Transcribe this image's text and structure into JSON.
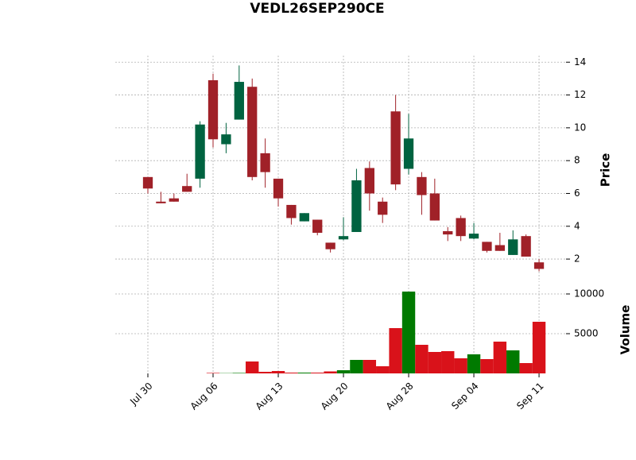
{
  "chart_data": {
    "type": "candlestick",
    "title": "VEDL26SEP290CE",
    "categories": [
      "Jul 30",
      null,
      null,
      null,
      null,
      "Aug 06",
      null,
      null,
      null,
      null,
      "Aug 13",
      null,
      null,
      null,
      null,
      "Aug 20",
      null,
      null,
      null,
      null,
      "Aug 28",
      null,
      null,
      null,
      null,
      "Sep 04",
      null,
      null,
      null,
      null,
      "Sep 11"
    ],
    "open": [
      7.0,
      5.5,
      5.7,
      6.45,
      6.9,
      12.9,
      9.0,
      10.5,
      12.5,
      8.45,
      6.9,
      5.3,
      4.3,
      4.4,
      3.0,
      3.2,
      3.65,
      7.55,
      5.5,
      11.0,
      7.5,
      7.0,
      6.0,
      3.7,
      4.5,
      3.25,
      3.05,
      2.85,
      2.25,
      3.4,
      1.8
    ],
    "high": [
      7.0,
      6.1,
      6.0,
      7.2,
      10.4,
      13.3,
      10.3,
      13.8,
      13.0,
      9.35,
      6.9,
      5.3,
      4.8,
      4.4,
      3.0,
      4.55,
      7.5,
      7.95,
      5.75,
      12.0,
      10.85,
      7.3,
      6.9,
      3.95,
      4.65,
      4.2,
      3.05,
      3.6,
      3.75,
      3.5,
      2.0
    ],
    "low": [
      6.0,
      5.4,
      5.5,
      6.1,
      6.35,
      8.8,
      8.45,
      10.5,
      6.8,
      6.35,
      5.2,
      4.1,
      4.3,
      3.45,
      2.4,
      3.15,
      3.65,
      4.95,
      4.2,
      6.2,
      7.15,
      4.7,
      4.35,
      3.1,
      3.1,
      3.2,
      2.4,
      2.5,
      2.25,
      2.15,
      1.25
    ],
    "close": [
      6.3,
      5.4,
      5.5,
      6.1,
      10.2,
      9.3,
      9.6,
      12.8,
      7.0,
      7.3,
      5.7,
      4.5,
      4.8,
      3.6,
      2.6,
      3.4,
      6.8,
      6.0,
      4.7,
      6.55,
      9.35,
      5.9,
      4.35,
      3.5,
      3.4,
      3.55,
      2.5,
      2.5,
      3.2,
      2.15,
      1.4
    ],
    "volume": [
      0,
      0,
      0,
      0,
      0,
      60,
      30,
      60,
      1500,
      200,
      300,
      100,
      100,
      100,
      250,
      400,
      1700,
      1700,
      900,
      5700,
      10300,
      3600,
      2700,
      2800,
      1900,
      2400,
      1800,
      4000,
      2900,
      1300,
      6500
    ],
    "up_color": "#006340",
    "down_color": "#a02128",
    "volume_up_color": "#007a00",
    "volume_down_color": "#d9121a",
    "ylabel": "Price",
    "ylim": [
      0.6,
      14.4
    ],
    "yticks": [
      2,
      4,
      6,
      8,
      10,
      12,
      14
    ],
    "volume_label": "Volume",
    "volume_ylim": [
      0,
      11200
    ],
    "volume_yticks": [
      5000,
      10000
    ],
    "grid": true
  }
}
